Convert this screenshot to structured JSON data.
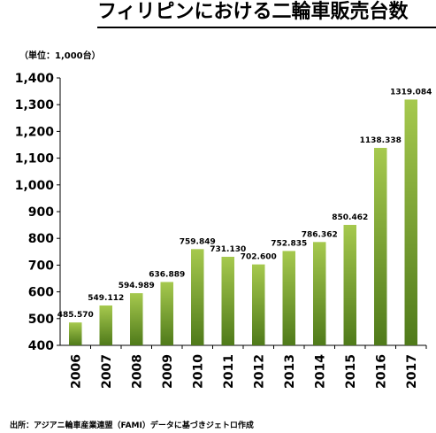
{
  "header": {
    "title": "フィリピンにおける二輪車販売台数"
  },
  "footer": {
    "source": "出所：アジアニ輪車産業連盟（FAMI）データに基づきジェトロ作成"
  },
  "colors": {
    "bar_top": "#a6c94e",
    "bar_bottom": "#4f7a1a",
    "axis": "#000000",
    "grid": "#000000"
  },
  "chart_data": {
    "type": "bar",
    "unit_label": "（単位：1,000台）",
    "categories": [
      "2006",
      "2007",
      "2008",
      "2009",
      "2010",
      "2011",
      "2012",
      "2013",
      "2014",
      "2015",
      "2016",
      "2017"
    ],
    "values": [
      485.57,
      549.112,
      594.989,
      636.889,
      759.849,
      731.13,
      702.6,
      752.835,
      786.362,
      850.462,
      1138.338,
      1319.084
    ],
    "value_labels": [
      "485.570",
      "549.112",
      "594.989",
      "636.889",
      "759.849",
      "731.130",
      "702.600",
      "752.835",
      "786.362",
      "850.462",
      "1138.338",
      "1319.084"
    ],
    "ylim": [
      400,
      1400
    ],
    "yticks": [
      400,
      500,
      600,
      700,
      800,
      900,
      1000,
      1100,
      1200,
      1300,
      1400
    ],
    "ytick_labels": [
      "400",
      "500",
      "600",
      "700",
      "800",
      "900",
      "1,000",
      "1,100",
      "1,200",
      "1,300",
      "1,400"
    ],
    "grid": false,
    "legend": "none"
  }
}
